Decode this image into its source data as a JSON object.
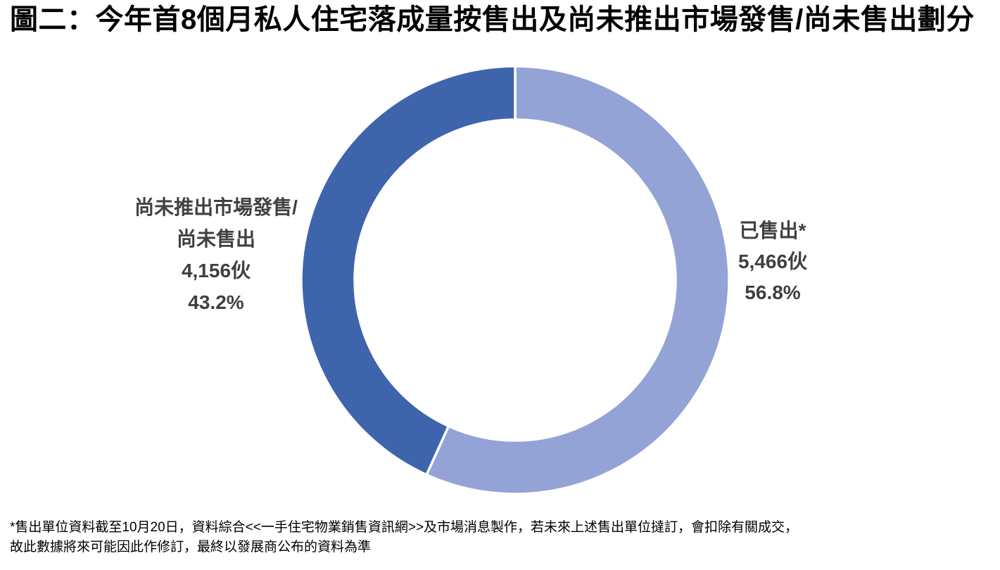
{
  "title": "圖二：今年首8個月私人住宅落成量按售出及尚未推出市場發售/尚未售出劃分",
  "chart_data": {
    "type": "pie",
    "donut": true,
    "title": "圖二：今年首8個月私人住宅落成量按售出及尚未推出市場發售/尚未售出劃分",
    "units": "伙",
    "start_angle_deg": 0,
    "direction": "clockwise",
    "inner_radius_ratio": 0.75,
    "slices": [
      {
        "id": "sold",
        "label": "已售出*",
        "value": 5466,
        "percent": 56.8,
        "color": "#93A3D6"
      },
      {
        "id": "unsold",
        "label": "尚未推出市場發售/尚未售出",
        "value": 4156,
        "percent": 43.2,
        "color": "#3E64AC"
      }
    ],
    "separator_color": "#ffffff"
  },
  "callouts": {
    "left": {
      "lines": [
        "尚未推出市場發售/",
        "尚未售出",
        "4,156伙",
        "43.2%"
      ]
    },
    "right": {
      "lines": [
        "已售出*",
        "5,466伙",
        "56.8%"
      ]
    }
  },
  "footnote": {
    "line1": "*售出單位資料截至10月20日，資料綜合<<一手住宅物業銷售資訊網>>及市場消息製作，若未來上述售出單位撻訂，會扣除有關成交，",
    "line2": "故此數據將來可能因此作修訂，最終以發展商公布的資料為準"
  }
}
